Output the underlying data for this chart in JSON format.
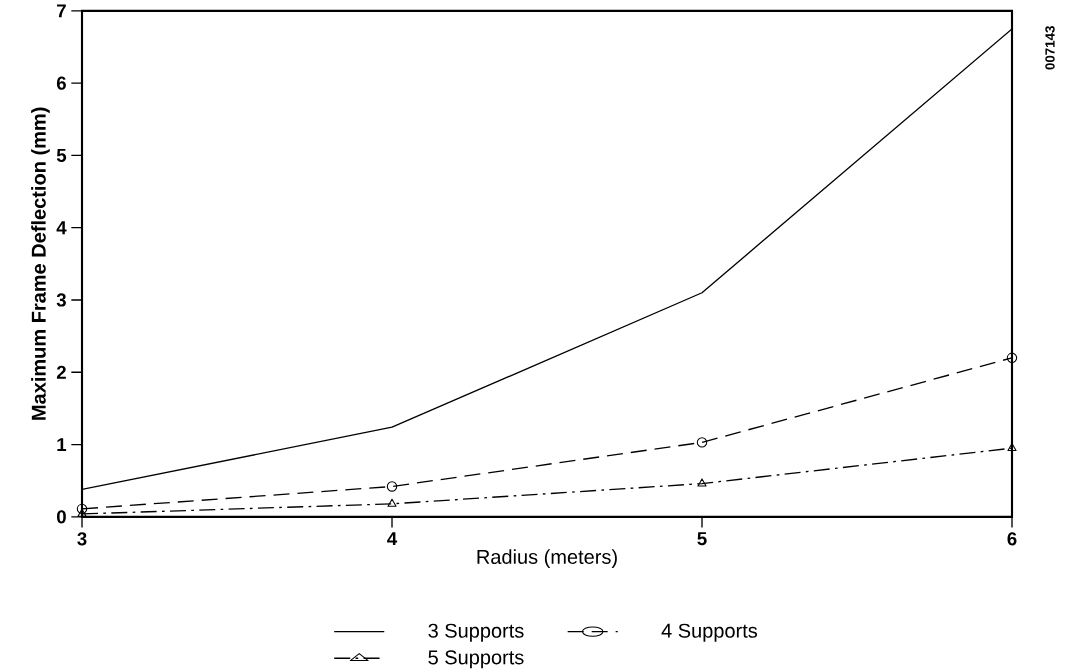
{
  "chart_data": {
    "type": "line",
    "xlabel": "Radius (meters)",
    "ylabel": "Maximum Frame Deflection (mm)",
    "x": [
      3,
      4,
      5,
      6
    ],
    "series": [
      {
        "name": "3 Supports",
        "color": "#000000",
        "values": [
          0.38,
          1.24,
          3.1,
          6.75
        ],
        "marker": "none",
        "line_style": "solid"
      },
      {
        "name": "4 Supports",
        "color": "#000000",
        "values": [
          0.11,
          0.42,
          1.03,
          2.2
        ],
        "marker": "circle",
        "line_style": "dashed"
      },
      {
        "name": "5 Supports",
        "color": "#000000",
        "values": [
          0.04,
          0.18,
          0.46,
          0.95
        ],
        "marker": "triangle",
        "line_style": "dashdot"
      }
    ],
    "xlim": [
      3,
      6
    ],
    "xticks": [
      3,
      4,
      5,
      6
    ],
    "ylim": [
      0,
      7
    ],
    "yticks": [
      0,
      1,
      2,
      3,
      4,
      5,
      6,
      7
    ],
    "grid": false,
    "legend": "bottom",
    "annotations": [
      "007143"
    ]
  }
}
